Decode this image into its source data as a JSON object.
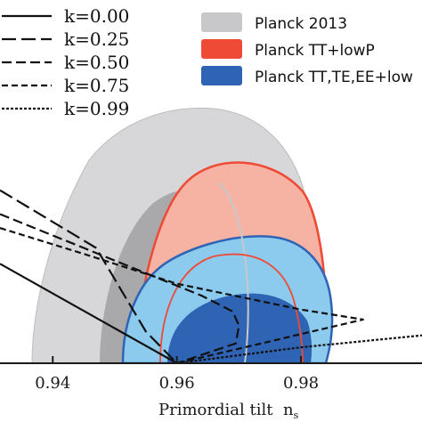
{
  "chart_data": {
    "type": "line",
    "title": "",
    "xlabel": "Primordial tilt",
    "xlabel_symbol": "n",
    "xlabel_subscript": "s",
    "xlim": [
      0.9315,
      0.9995
    ],
    "ylim": [
      0.0,
      0.18
    ],
    "x_ticks": [
      0.94,
      0.96,
      0.98
    ],
    "x_tick_labels": [
      "0.94",
      "0.96",
      "0.98"
    ],
    "grid": false,
    "legend_placement": "top-left and top-right",
    "series": [
      {
        "name": "k=0.00",
        "dash": "solid",
        "x": [
          0.9315,
          0.96
        ],
        "y": [
          0.05,
          0.0
        ]
      },
      {
        "name": "k=0.25",
        "dash": "long-dash",
        "x": [
          0.9315,
          0.947,
          0.951,
          0.955,
          0.96
        ],
        "y": [
          0.087,
          0.058,
          0.037,
          0.016,
          0.0
        ]
      },
      {
        "name": "k=0.50",
        "dash": "dash",
        "x": [
          0.9315,
          0.945,
          0.956,
          0.964,
          0.969,
          0.97,
          0.9695,
          0.96
        ],
        "y": [
          0.075,
          0.058,
          0.044,
          0.034,
          0.026,
          0.019,
          0.01,
          0.0
        ]
      },
      {
        "name": "k=0.75",
        "dash": "short-dash",
        "x": [
          0.9315,
          0.945,
          0.96,
          0.98,
          0.99,
          0.96
        ],
        "y": [
          0.068,
          0.055,
          0.04,
          0.027,
          0.022,
          0.0
        ]
      },
      {
        "name": "k=0.99",
        "dash": "dot",
        "x": [
          0.96,
          0.98,
          0.9995
        ],
        "y": [
          0.0,
          0.008,
          0.014
        ]
      }
    ],
    "contours": [
      {
        "name": "Planck 2013",
        "color_outer": "#d7d7d9",
        "color_inner": "#a9a9ab"
      },
      {
        "name": "Planck TT+lowP",
        "color_outer": "#f6b3a4",
        "color_inner": "#ef7d68"
      },
      {
        "name": "Planck TT,TE,EE+low",
        "color_outer": "#8ccbed",
        "color_inner": "#2f63b4"
      }
    ],
    "colors": {
      "planck_2013": "#c8c8ca",
      "planck_tt_lowp": "#ee4a36",
      "planck_tt_te_ee": "#2f63b4",
      "axis": "#1a1a1a"
    }
  }
}
